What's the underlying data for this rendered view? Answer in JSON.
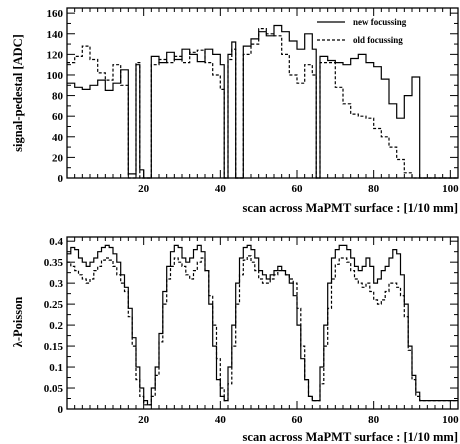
{
  "chart_data": [
    {
      "type": "line",
      "ylabel": "signal-pedestal  [ADC]",
      "xlabel": "scan across MaPMT surface : [1/10 mm]",
      "xlim": [
        0,
        102
      ],
      "ylim": [
        0,
        165
      ],
      "xticks": [
        20,
        40,
        60,
        80,
        100
      ],
      "yticks": [
        0,
        20,
        40,
        60,
        80,
        100,
        120,
        140,
        160
      ],
      "legend_position": "top-right",
      "series": [
        {
          "name": "new focussing",
          "style": "solid",
          "x": [
            0,
            2,
            4,
            6,
            8,
            10,
            12,
            14,
            16,
            18,
            19,
            20,
            22,
            24,
            26,
            28,
            30,
            32,
            34,
            36,
            38,
            40,
            41,
            42,
            43,
            44,
            46,
            48,
            50,
            52,
            54,
            56,
            58,
            60,
            62,
            64,
            65,
            66,
            68,
            70,
            72,
            74,
            76,
            78,
            80,
            82,
            84,
            86,
            88,
            90,
            92,
            94,
            96,
            98,
            100,
            102
          ],
          "y": [
            92,
            88,
            86,
            90,
            95,
            85,
            92,
            105,
            4,
            110,
            8,
            0,
            118,
            112,
            122,
            115,
            125,
            120,
            113,
            125,
            120,
            110,
            0,
            120,
            132,
            0,
            128,
            135,
            142,
            138,
            148,
            142,
            133,
            125,
            140,
            125,
            0,
            118,
            114,
            112,
            110,
            116,
            120,
            112,
            108,
            96,
            72,
            58,
            80,
            98,
            0,
            0,
            0,
            0,
            0,
            0
          ]
        },
        {
          "name": "old focussing",
          "style": "dashed",
          "x": [
            0,
            2,
            4,
            6,
            8,
            10,
            12,
            14,
            16,
            18,
            19,
            20,
            22,
            24,
            26,
            28,
            30,
            32,
            34,
            36,
            38,
            40,
            41,
            42,
            43,
            44,
            46,
            48,
            50,
            52,
            54,
            56,
            58,
            60,
            62,
            64,
            65,
            66,
            68,
            70,
            72,
            74,
            76,
            78,
            80,
            82,
            84,
            86,
            88,
            90,
            92,
            94,
            96,
            98,
            100,
            102
          ],
          "y": [
            112,
            118,
            128,
            115,
            102,
            95,
            110,
            90,
            0,
            112,
            0,
            0,
            110,
            115,
            112,
            118,
            112,
            122,
            124,
            112,
            100,
            86,
            0,
            115,
            125,
            0,
            120,
            130,
            145,
            140,
            138,
            120,
            100,
            92,
            110,
            100,
            0,
            112,
            112,
            88,
            72,
            62,
            60,
            58,
            48,
            40,
            30,
            18,
            5,
            0,
            0,
            0,
            0,
            0,
            0,
            0
          ]
        }
      ]
    },
    {
      "type": "line",
      "ylabel": "λ-Poisson",
      "xlabel": "scan across MaPMT surface : [1/10 mm]",
      "xlim": [
        0,
        102
      ],
      "ylim": [
        0,
        0.41
      ],
      "xticks": [
        20,
        40,
        60,
        80,
        100
      ],
      "yticks": [
        0,
        0.05,
        0.1,
        0.15,
        0.2,
        0.25,
        0.3,
        0.35,
        0.4
      ],
      "series": [
        {
          "name": "new focussing",
          "style": "solid",
          "x": [
            0,
            1,
            2,
            3,
            4,
            5,
            6,
            7,
            8,
            9,
            10,
            11,
            12,
            13,
            14,
            15,
            16,
            17,
            18,
            19,
            20,
            21,
            22,
            23,
            24,
            25,
            26,
            27,
            28,
            29,
            30,
            31,
            32,
            33,
            34,
            35,
            36,
            37,
            38,
            39,
            40,
            41,
            42,
            43,
            44,
            45,
            46,
            47,
            48,
            49,
            50,
            51,
            52,
            53,
            54,
            55,
            56,
            57,
            58,
            59,
            60,
            61,
            62,
            63,
            64,
            65,
            66,
            67,
            68,
            69,
            70,
            71,
            72,
            73,
            74,
            75,
            76,
            77,
            78,
            79,
            80,
            81,
            82,
            83,
            84,
            85,
            86,
            87,
            88,
            89,
            90,
            91,
            92,
            93,
            94,
            95,
            96,
            97,
            98,
            99,
            100,
            101,
            102
          ],
          "y": [
            0.37,
            0.385,
            0.38,
            0.36,
            0.35,
            0.34,
            0.35,
            0.36,
            0.375,
            0.385,
            0.39,
            0.385,
            0.37,
            0.35,
            0.32,
            0.29,
            0.24,
            0.17,
            0.1,
            0.05,
            0.02,
            0.01,
            0.05,
            0.1,
            0.18,
            0.28,
            0.34,
            0.375,
            0.39,
            0.385,
            0.36,
            0.35,
            0.36,
            0.38,
            0.39,
            0.375,
            0.33,
            0.25,
            0.15,
            0.07,
            0.03,
            0.02,
            0.1,
            0.2,
            0.3,
            0.36,
            0.385,
            0.39,
            0.38,
            0.36,
            0.33,
            0.32,
            0.31,
            0.32,
            0.33,
            0.34,
            0.33,
            0.32,
            0.3,
            0.27,
            0.2,
            0.12,
            0.07,
            0.03,
            0.02,
            0.02,
            0.1,
            0.2,
            0.3,
            0.36,
            0.38,
            0.39,
            0.39,
            0.38,
            0.36,
            0.34,
            0.33,
            0.34,
            0.36,
            0.34,
            0.3,
            0.31,
            0.33,
            0.34,
            0.36,
            0.38,
            0.37,
            0.32,
            0.25,
            0.15,
            0.08,
            0.04,
            0.02,
            0.02,
            0.02,
            0.02,
            0.02,
            0.02,
            0.02,
            0.02,
            0.02,
            0.02,
            0.02
          ]
        },
        {
          "name": "old focussing",
          "style": "dashed",
          "x": [
            0,
            1,
            2,
            3,
            4,
            5,
            6,
            7,
            8,
            9,
            10,
            11,
            12,
            13,
            14,
            15,
            16,
            17,
            18,
            19,
            20,
            21,
            22,
            23,
            24,
            25,
            26,
            27,
            28,
            29,
            30,
            31,
            32,
            33,
            34,
            35,
            36,
            37,
            38,
            39,
            40,
            41,
            42,
            43,
            44,
            45,
            46,
            47,
            48,
            49,
            50,
            51,
            52,
            53,
            54,
            55,
            56,
            57,
            58,
            59,
            60,
            61,
            62,
            63,
            64,
            65,
            66,
            67,
            68,
            69,
            70,
            71,
            72,
            73,
            74,
            75,
            76,
            77,
            78,
            79,
            80,
            81,
            82,
            83,
            84,
            85,
            86,
            87,
            88,
            89,
            90,
            91,
            92,
            93,
            94,
            95,
            96,
            97,
            98,
            99,
            100,
            101,
            102
          ],
          "y": [
            0.35,
            0.34,
            0.33,
            0.32,
            0.31,
            0.3,
            0.31,
            0.33,
            0.34,
            0.355,
            0.36,
            0.355,
            0.34,
            0.32,
            0.3,
            0.28,
            0.22,
            0.15,
            0.07,
            0.03,
            0.01,
            0.01,
            0.03,
            0.08,
            0.16,
            0.25,
            0.31,
            0.34,
            0.36,
            0.35,
            0.34,
            0.32,
            0.31,
            0.33,
            0.35,
            0.36,
            0.33,
            0.27,
            0.2,
            0.12,
            0.05,
            0.02,
            0.06,
            0.15,
            0.25,
            0.32,
            0.355,
            0.365,
            0.35,
            0.33,
            0.31,
            0.3,
            0.3,
            0.31,
            0.32,
            0.33,
            0.33,
            0.32,
            0.31,
            0.3,
            0.24,
            0.15,
            0.07,
            0.03,
            0.02,
            0.02,
            0.06,
            0.15,
            0.24,
            0.31,
            0.345,
            0.36,
            0.36,
            0.35,
            0.33,
            0.31,
            0.3,
            0.29,
            0.3,
            0.28,
            0.26,
            0.25,
            0.26,
            0.28,
            0.3,
            0.3,
            0.29,
            0.27,
            0.22,
            0.14,
            0.07,
            0.03,
            0.02,
            0.02,
            0.02,
            0.02,
            0.02,
            0.02,
            0.02,
            0.02,
            0.02,
            0.02,
            0.02
          ]
        }
      ]
    }
  ]
}
